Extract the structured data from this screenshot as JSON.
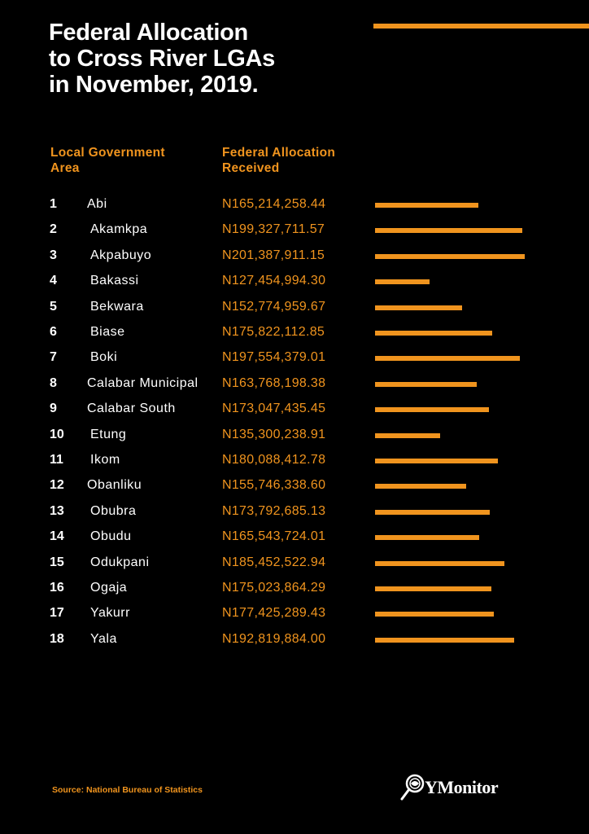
{
  "title_lines": [
    "Federal Allocation",
    "to Cross River LGAs",
    "in November, 2019."
  ],
  "headers": {
    "col1": [
      "Local Government",
      "Area"
    ],
    "col2": [
      "Federal Allocation",
      "Received"
    ]
  },
  "source": "Source: National Bureau of Statistics",
  "logo": {
    "text": "YMonitor",
    "icon": "magnifier-eye-icon"
  },
  "colors": {
    "accent": "#f0941e",
    "background": "#000000",
    "text": "#ffffff"
  },
  "chart_data": {
    "type": "bar",
    "orientation": "horizontal",
    "title": "Federal Allocation to Cross River LGAs in November, 2019.",
    "xlabel": "Federal Allocation Received",
    "ylabel": "Local Government Area",
    "xlim": [
      85000000,
      203000000
    ],
    "grid": false,
    "rows": [
      {
        "rank": "1",
        "name": "Abi",
        "label": "N165,214,258.44",
        "value": 165214258.44
      },
      {
        "rank": "2",
        "name": "Akamkpa",
        "label": "N199,327,711.57",
        "value": 199327711.57
      },
      {
        "rank": "3",
        "name": "Akpabuyo",
        "label": "N201,387,911.15",
        "value": 201387911.15
      },
      {
        "rank": "4",
        "name": "Bakassi",
        "label": "N127,454,994.30",
        "value": 127454994.3
      },
      {
        "rank": "5",
        "name": "Bekwara",
        "label": "N152,774,959.67",
        "value": 152774959.67
      },
      {
        "rank": "6",
        "name": "Biase",
        "label": "N175,822,112.85",
        "value": 175822112.85
      },
      {
        "rank": "7",
        "name": "Boki",
        "label": "N197,554,379.01",
        "value": 197554379.01
      },
      {
        "rank": "8",
        "name": "Calabar Municipal",
        "label": "N163,768,198.38",
        "value": 163768198.38
      },
      {
        "rank": "9",
        "name": "Calabar South",
        "label": "N173,047,435.45",
        "value": 173047435.45
      },
      {
        "rank": "10",
        "name": "Etung",
        "label": "N135,300,238.91",
        "value": 135300238.91
      },
      {
        "rank": "11",
        "name": "Ikom",
        "label": "N180,088,412.78",
        "value": 180088412.78
      },
      {
        "rank": "12",
        "name": "Obanliku",
        "label": "N155,746,338.60",
        "value": 155746338.6
      },
      {
        "rank": "13",
        "name": "Obubra",
        "label": "N173,792,685.13",
        "value": 173792685.13
      },
      {
        "rank": "14",
        "name": "Obudu",
        "label": "N165,543,724.01",
        "value": 165543724.01
      },
      {
        "rank": "15",
        "name": "Odukpani",
        "label": "N185,452,522.94",
        "value": 185452522.94
      },
      {
        "rank": "16",
        "name": "Ogaja",
        "label": "N175,023,864.29",
        "value": 175023864.29
      },
      {
        "rank": "17",
        "name": "Yakurr",
        "label": "N177,425,289.43",
        "value": 177425289.43
      },
      {
        "rank": "18",
        "name": "Yala",
        "label": "N192,819,884.00",
        "value": 192819884.0
      }
    ]
  }
}
